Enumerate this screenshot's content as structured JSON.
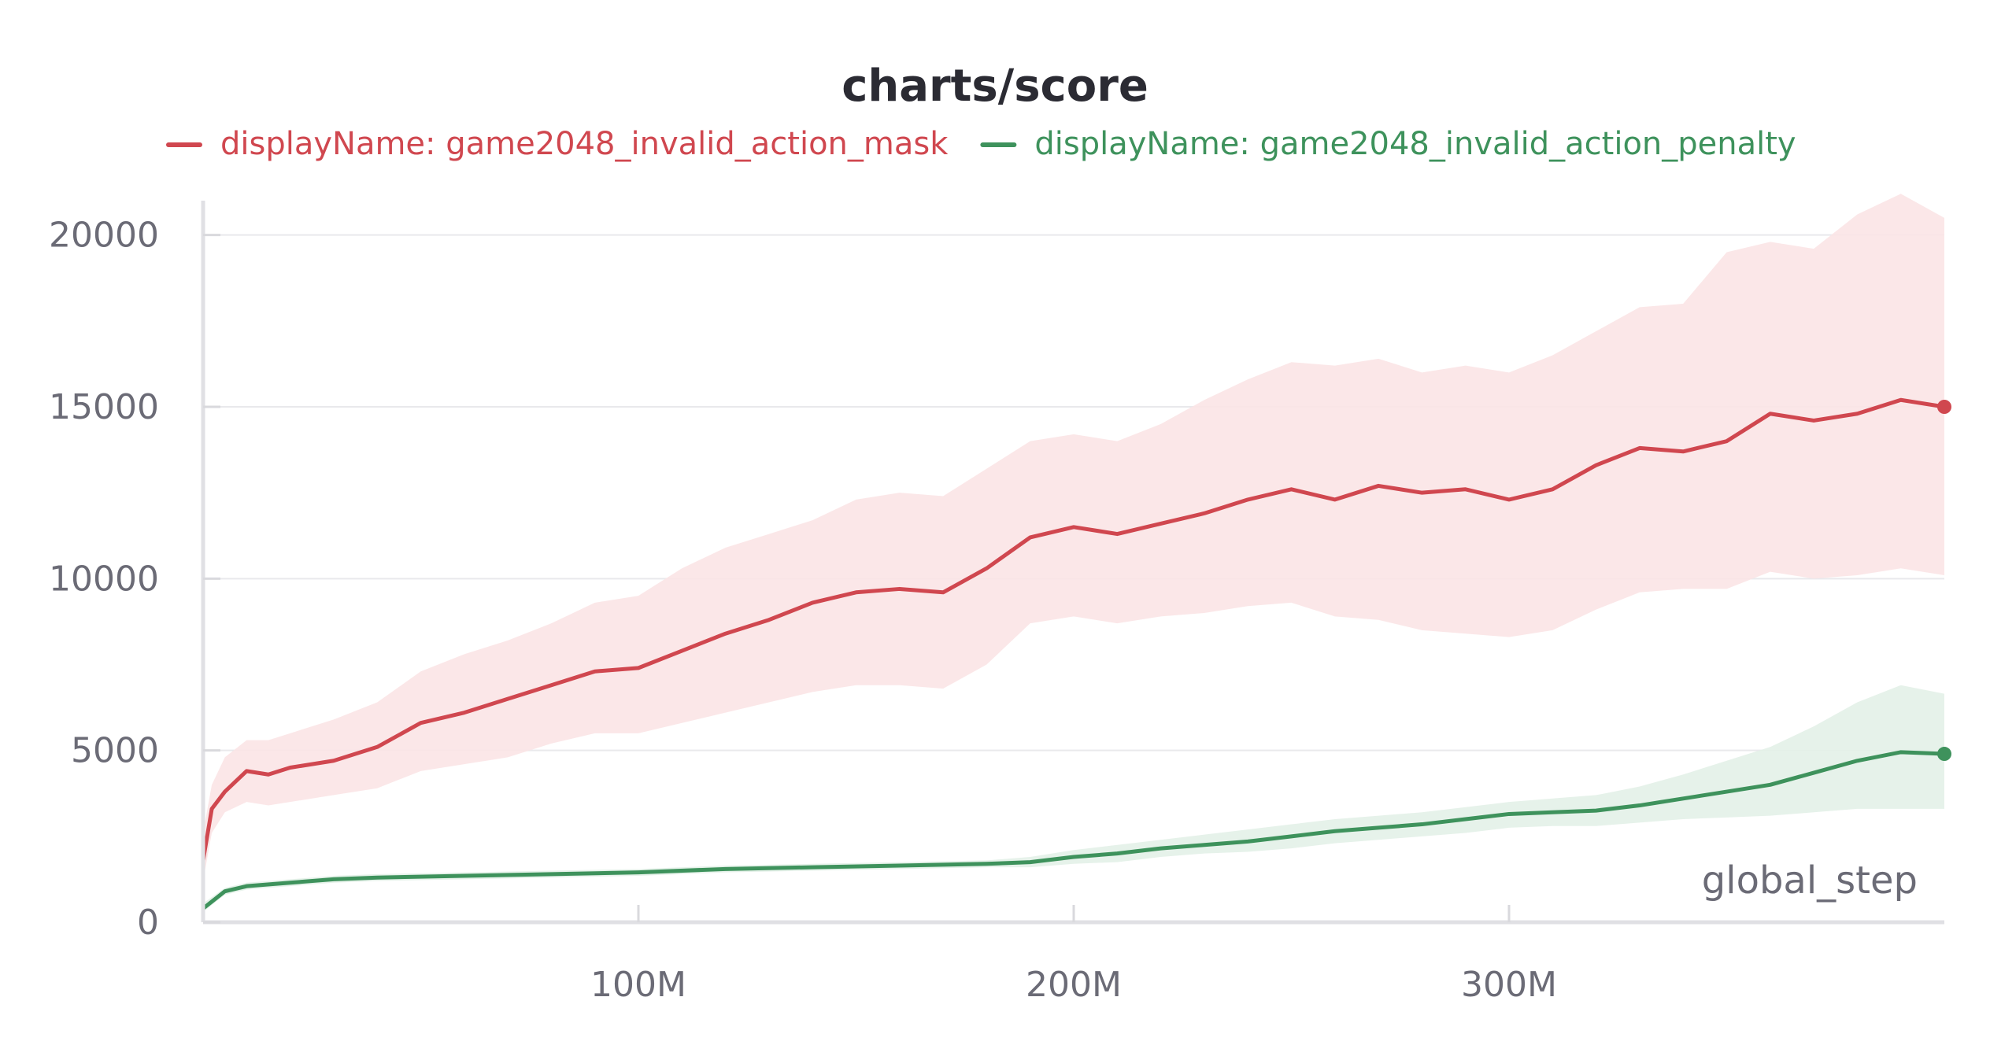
{
  "chart_data": {
    "type": "line",
    "title": "charts/score",
    "xlabel": "global_step",
    "ylabel": "",
    "xlim": [
      0,
      400000000
    ],
    "ylim": [
      0,
      21000
    ],
    "x_ticks": [
      {
        "value": 100000000,
        "label": "100M"
      },
      {
        "value": 200000000,
        "label": "200M"
      },
      {
        "value": 300000000,
        "label": "300M"
      }
    ],
    "y_ticks": [
      {
        "value": 0,
        "label": "0"
      },
      {
        "value": 5000,
        "label": "5000"
      },
      {
        "value": 10000,
        "label": "10000"
      },
      {
        "value": 15000,
        "label": "15000"
      },
      {
        "value": 20000,
        "label": "20000"
      }
    ],
    "grid": true,
    "legend_position": "top",
    "series": [
      {
        "name": "displayName: game2048_invalid_action_mask",
        "color": "#d0474f",
        "band_color": "#fbe4e6",
        "x": [
          0,
          2000000,
          5000000,
          10000000,
          15000000,
          20000000,
          30000000,
          40000000,
          50000000,
          60000000,
          70000000,
          80000000,
          90000000,
          100000000,
          110000000,
          120000000,
          130000000,
          140000000,
          150000000,
          160000000,
          170000000,
          180000000,
          190000000,
          200000000,
          210000000,
          220000000,
          230000000,
          240000000,
          250000000,
          260000000,
          270000000,
          280000000,
          290000000,
          300000000,
          310000000,
          320000000,
          330000000,
          340000000,
          350000000,
          360000000,
          370000000,
          380000000,
          390000000,
          400000000
        ],
        "y": [
          1800,
          3300,
          3800,
          4400,
          4300,
          4500,
          4700,
          5100,
          5800,
          6100,
          6500,
          6900,
          7300,
          7400,
          7900,
          8400,
          8800,
          9300,
          9600,
          9700,
          9600,
          10300,
          11200,
          11500,
          11300,
          11600,
          11900,
          12300,
          12600,
          12300,
          12700,
          12500,
          12600,
          12300,
          12600,
          13300,
          13800,
          13700,
          14000,
          14800,
          14600,
          14800,
          15200,
          15000
        ],
        "y_upper": [
          2600,
          4000,
          4800,
          5300,
          5300,
          5500,
          5900,
          6400,
          7300,
          7800,
          8200,
          8700,
          9300,
          9500,
          10300,
          10900,
          11300,
          11700,
          12300,
          12500,
          12400,
          13200,
          14000,
          14200,
          14000,
          14500,
          15200,
          15800,
          16300,
          16200,
          16400,
          16000,
          16200,
          16000,
          16500,
          17200,
          17900,
          18000,
          19500,
          19800,
          19600,
          20600,
          21200,
          20500
        ],
        "y_lower": [
          1200,
          2600,
          3200,
          3500,
          3400,
          3500,
          3700,
          3900,
          4400,
          4600,
          4800,
          5200,
          5500,
          5500,
          5800,
          6100,
          6400,
          6700,
          6900,
          6900,
          6800,
          7500,
          8700,
          8900,
          8700,
          8900,
          9000,
          9200,
          9300,
          8900,
          8800,
          8500,
          8400,
          8300,
          8500,
          9100,
          9600,
          9700,
          9700,
          10200,
          10000,
          10100,
          10300,
          10100
        ]
      },
      {
        "name": "displayName: game2048_invalid_action_penalty",
        "color": "#3e925c",
        "band_color": "#e3f1e8",
        "x": [
          0,
          5000000,
          10000000,
          20000000,
          30000000,
          40000000,
          60000000,
          80000000,
          100000000,
          120000000,
          140000000,
          160000000,
          180000000,
          190000000,
          200000000,
          210000000,
          220000000,
          230000000,
          240000000,
          250000000,
          260000000,
          270000000,
          280000000,
          290000000,
          300000000,
          310000000,
          320000000,
          330000000,
          340000000,
          350000000,
          360000000,
          370000000,
          380000000,
          390000000,
          400000000
        ],
        "y": [
          400,
          900,
          1050,
          1150,
          1250,
          1300,
          1350,
          1400,
          1450,
          1550,
          1600,
          1650,
          1700,
          1750,
          1900,
          2000,
          2150,
          2250,
          2350,
          2500,
          2650,
          2750,
          2850,
          3000,
          3150,
          3200,
          3250,
          3400,
          3600,
          3800,
          4000,
          4350,
          4700,
          4950,
          4900
        ],
        "y_upper": [
          550,
          1000,
          1150,
          1250,
          1350,
          1400,
          1450,
          1500,
          1550,
          1650,
          1700,
          1750,
          1800,
          1900,
          2100,
          2250,
          2400,
          2550,
          2700,
          2850,
          3000,
          3100,
          3200,
          3350,
          3500,
          3600,
          3700,
          3950,
          4300,
          4700,
          5100,
          5700,
          6400,
          6900,
          6650
        ],
        "y_lower": [
          300,
          800,
          950,
          1050,
          1150,
          1200,
          1250,
          1300,
          1350,
          1450,
          1500,
          1550,
          1600,
          1600,
          1700,
          1750,
          1900,
          2000,
          2050,
          2150,
          2300,
          2400,
          2500,
          2600,
          2750,
          2800,
          2800,
          2900,
          3000,
          3050,
          3100,
          3200,
          3300,
          3300,
          3300
        ]
      }
    ]
  }
}
